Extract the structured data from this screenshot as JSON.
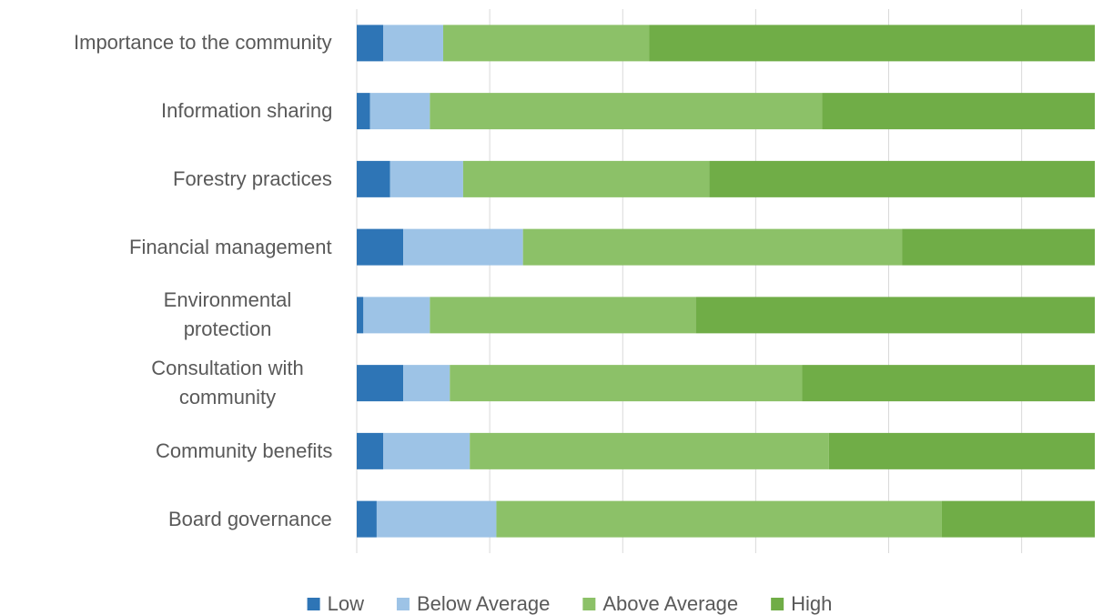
{
  "chart_data": {
    "type": "stacked_barh",
    "categories": [
      "Importance to the community",
      "Information sharing",
      "Forestry practices",
      "Financial management",
      "Environmental protection",
      "Consultation with community",
      "Community benefits",
      "Board governance"
    ],
    "series": [
      {
        "name": "Low",
        "color": "#2e75b6",
        "values": [
          4,
          2,
          5,
          7,
          1,
          7,
          4,
          3
        ]
      },
      {
        "name": "Below Average",
        "color": "#9dc3e6",
        "values": [
          9,
          9,
          11,
          18,
          10,
          7,
          13,
          18
        ]
      },
      {
        "name": "Above Average",
        "color": "#8cc168",
        "values": [
          31,
          59,
          37,
          57,
          40,
          53,
          54,
          67
        ]
      },
      {
        "name": "High",
        "color": "#70ad47",
        "values": [
          67,
          41,
          58,
          29,
          60,
          44,
          40,
          23
        ]
      }
    ],
    "xlim": [
      0,
      111
    ],
    "xticks": [
      0,
      20,
      40,
      60,
      80,
      100
    ],
    "grid": true,
    "legend": "bottom"
  }
}
